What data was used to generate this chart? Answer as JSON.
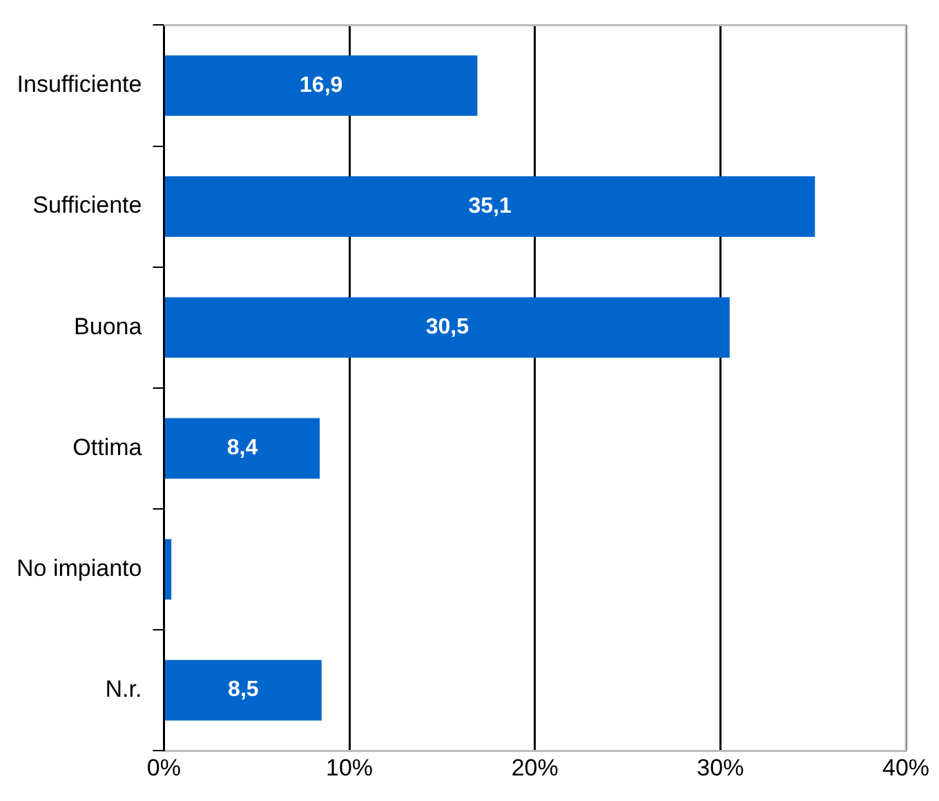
{
  "chart_data": {
    "type": "bar",
    "orientation": "horizontal",
    "categories": [
      "Insufficiente",
      "Sufficiente",
      "Buona",
      "Ottima",
      "No impianto",
      "N.r."
    ],
    "values": [
      16.9,
      35.1,
      30.5,
      8.4,
      0.4,
      8.5
    ],
    "value_labels": [
      "16,9",
      "35,1",
      "30,5",
      "8,4",
      null,
      "8,5"
    ],
    "color": "#0066cc",
    "xlim": [
      0,
      40
    ],
    "xticks": [
      {
        "value": 0,
        "label": "0%"
      },
      {
        "value": 10,
        "label": "10%"
      },
      {
        "value": 20,
        "label": "20%"
      },
      {
        "value": 30,
        "label": "30%"
      },
      {
        "value": 40,
        "label": "40%"
      }
    ],
    "grid": "x",
    "legend": false
  }
}
